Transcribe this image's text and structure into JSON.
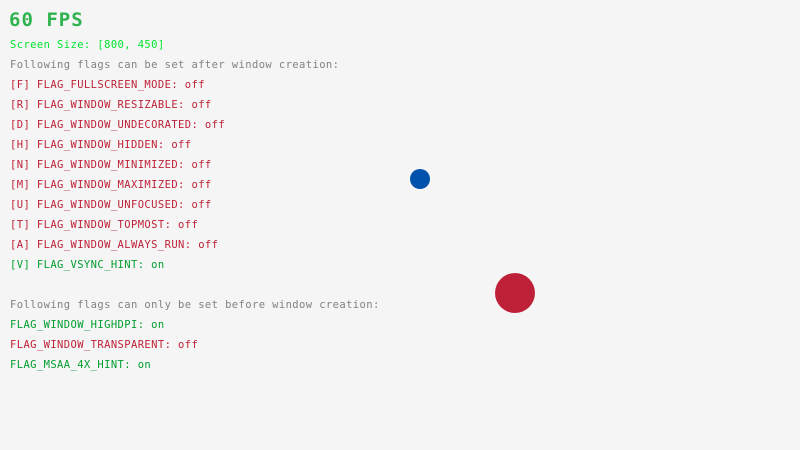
{
  "fps": "60 FPS",
  "screen_size": "Screen Size: [800, 450]",
  "after_header": "Following flags can be set after window creation:",
  "after_flags": [
    {
      "label": "[F] FLAG_FULLSCREEN_MODE: off",
      "on": false
    },
    {
      "label": "[R] FLAG_WINDOW_RESIZABLE: off",
      "on": false
    },
    {
      "label": "[D] FLAG_WINDOW_UNDECORATED: off",
      "on": false
    },
    {
      "label": "[H] FLAG_WINDOW_HIDDEN: off",
      "on": false
    },
    {
      "label": "[N] FLAG_WINDOW_MINIMIZED: off",
      "on": false
    },
    {
      "label": "[M] FLAG_WINDOW_MAXIMIZED: off",
      "on": false
    },
    {
      "label": "[U] FLAG_WINDOW_UNFOCUSED: off",
      "on": false
    },
    {
      "label": "[T] FLAG_WINDOW_TOPMOST: off",
      "on": false
    },
    {
      "label": "[A] FLAG_WINDOW_ALWAYS_RUN: off",
      "on": false
    },
    {
      "label": "[V] FLAG_VSYNC_HINT: on",
      "on": true
    }
  ],
  "before_header": "Following flags can only be set before window creation:",
  "before_flags": [
    {
      "label": "FLAG_WINDOW_HIGHDPI: on",
      "on": true
    },
    {
      "label": "FLAG_WINDOW_TRANSPARENT: off",
      "on": false
    },
    {
      "label": "FLAG_MSAA_4X_HINT: on",
      "on": true
    }
  ],
  "colors": {
    "on": "#009E2F",
    "off": "#BE2137",
    "screen_size": "#00E430",
    "header": "#828282",
    "ball_small": "#0052AC",
    "ball_large": "#BE2137",
    "background": "#F5F5F5"
  }
}
